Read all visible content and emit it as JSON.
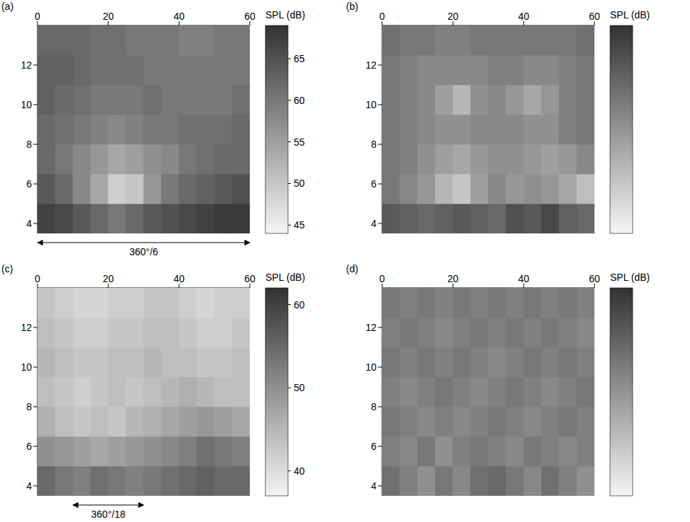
{
  "chart_data": [
    {
      "panel": "(a)",
      "type": "heatmap",
      "xlim": [
        0,
        60
      ],
      "xticks": [
        0,
        20,
        40,
        60
      ],
      "ylim": [
        3.5,
        14
      ],
      "yticks": [
        4,
        6,
        8,
        10,
        12
      ],
      "x_edges": [
        0,
        5,
        10,
        15,
        20,
        25,
        30,
        35,
        40,
        45,
        50,
        55,
        60
      ],
      "y_edges": [
        3.5,
        5,
        6.5,
        8,
        9.5,
        11,
        12.5,
        14
      ],
      "cells": [
        [
          67,
          66,
          64,
          62,
          60,
          62,
          64,
          65,
          66,
          67,
          68,
          68
        ],
        [
          64,
          62,
          58,
          54,
          49,
          50,
          56,
          60,
          62,
          63,
          64,
          65
        ],
        [
          62,
          60,
          58,
          56,
          54,
          55,
          57,
          58,
          60,
          61,
          62,
          62
        ],
        [
          62,
          61,
          60,
          59,
          58,
          59,
          60,
          60,
          61,
          61,
          61,
          62
        ],
        [
          63,
          62,
          61,
          60,
          60,
          60,
          61,
          60,
          60,
          60,
          60,
          61
        ],
        [
          63,
          63,
          62,
          61,
          61,
          61,
          60,
          60,
          60,
          60,
          60,
          60
        ],
        [
          62,
          62,
          62,
          61,
          61,
          60,
          60,
          60,
          59,
          59,
          60,
          60
        ]
      ],
      "colorbar": {
        "label": "SPL (dB)",
        "range": [
          44,
          69
        ],
        "ticks": [
          45,
          50,
          55,
          60,
          65
        ]
      },
      "annotation": {
        "text": "360°/6",
        "x": [
          0,
          60
        ]
      }
    },
    {
      "panel": "(b)",
      "type": "heatmap",
      "xlim": [
        0,
        60
      ],
      "xticks": [
        0,
        20,
        40,
        60
      ],
      "ylim": [
        3.5,
        14
      ],
      "yticks": [
        4,
        6,
        8,
        10,
        12
      ],
      "x_edges": [
        0,
        5,
        10,
        15,
        20,
        25,
        30,
        35,
        40,
        45,
        50,
        55,
        60
      ],
      "y_edges": [
        3.5,
        5,
        6.5,
        8,
        9.5,
        11,
        12.5,
        14
      ],
      "cells": [
        [
          64,
          63,
          62,
          63,
          64,
          63,
          62,
          65,
          64,
          66,
          63,
          62
        ],
        [
          60,
          58,
          56,
          52,
          50,
          55,
          58,
          56,
          57,
          56,
          54,
          51
        ],
        [
          60,
          59,
          57,
          55,
          54,
          56,
          57,
          57,
          56,
          55,
          56,
          58
        ],
        [
          60,
          59,
          58,
          57,
          57,
          58,
          58,
          58,
          57,
          57,
          59,
          60
        ],
        [
          60,
          59,
          58,
          55,
          52,
          57,
          58,
          56,
          54,
          56,
          59,
          60
        ],
        [
          60,
          59,
          58,
          58,
          58,
          58,
          59,
          59,
          58,
          58,
          59,
          60
        ],
        [
          61,
          60,
          60,
          59,
          59,
          60,
          60,
          60,
          60,
          60,
          60,
          61
        ]
      ],
      "colorbar": {
        "label": "SPL (dB)",
        "range": [
          44,
          69
        ]
      }
    },
    {
      "panel": "(c)",
      "type": "heatmap",
      "xlim": [
        0,
        60
      ],
      "xticks": [
        0,
        20,
        40,
        60
      ],
      "ylim": [
        3.5,
        14
      ],
      "yticks": [
        4,
        6,
        8,
        10,
        12
      ],
      "x_edges": [
        0,
        5,
        10,
        15,
        20,
        25,
        30,
        35,
        40,
        45,
        50,
        55,
        60
      ],
      "y_edges": [
        3.5,
        5,
        6.5,
        8,
        9.5,
        11,
        12.5,
        14
      ],
      "cells": [
        [
          55,
          53,
          52,
          54,
          53,
          52,
          53,
          54,
          55,
          56,
          55,
          55
        ],
        [
          50,
          49,
          48,
          47,
          48,
          49,
          50,
          51,
          52,
          54,
          53,
          52
        ],
        [
          46,
          44,
          43,
          44,
          43,
          45,
          46,
          47,
          48,
          49,
          48,
          47
        ],
        [
          44,
          43,
          42,
          43,
          44,
          43,
          44,
          45,
          46,
          45,
          44,
          44
        ],
        [
          45,
          44,
          43,
          43,
          44,
          44,
          45,
          44,
          44,
          43,
          43,
          44
        ],
        [
          44,
          43,
          42,
          42,
          43,
          43,
          44,
          44,
          43,
          42,
          42,
          43
        ],
        [
          43,
          42,
          41,
          41,
          42,
          42,
          43,
          43,
          42,
          41,
          42,
          42
        ]
      ],
      "colorbar": {
        "label": "SPL (dB)",
        "range": [
          37,
          62
        ],
        "ticks": [
          40,
          50,
          60
        ]
      },
      "annotation": {
        "text": "360°/18",
        "x": [
          10,
          30
        ]
      }
    },
    {
      "panel": "(d)",
      "type": "heatmap",
      "xlim": [
        0,
        60
      ],
      "xticks": [
        0,
        20,
        40,
        60
      ],
      "ylim": [
        3.5,
        14
      ],
      "yticks": [
        4,
        6,
        8,
        10,
        12
      ],
      "x_edges": [
        0,
        5,
        10,
        15,
        20,
        25,
        30,
        35,
        40,
        45,
        50,
        55,
        60
      ],
      "y_edges": [
        3.5,
        5,
        6.5,
        8,
        9.5,
        11,
        12.5,
        14
      ],
      "cells": [
        [
          54,
          52,
          50,
          53,
          51,
          54,
          55,
          53,
          51,
          54,
          52,
          50
        ],
        [
          52,
          51,
          53,
          50,
          52,
          53,
          52,
          51,
          53,
          52,
          51,
          52
        ],
        [
          53,
          52,
          51,
          52,
          51,
          52,
          53,
          52,
          51,
          52,
          53,
          52
        ],
        [
          52,
          51,
          52,
          53,
          52,
          51,
          52,
          53,
          52,
          51,
          52,
          53
        ],
        [
          53,
          52,
          53,
          52,
          53,
          52,
          51,
          52,
          53,
          52,
          53,
          52
        ],
        [
          52,
          53,
          52,
          51,
          52,
          53,
          52,
          53,
          52,
          53,
          52,
          51
        ],
        [
          53,
          52,
          53,
          52,
          53,
          52,
          53,
          52,
          53,
          52,
          53,
          52
        ]
      ],
      "colorbar": {
        "label": "SPL (dB)",
        "range": [
          37,
          62
        ]
      }
    }
  ]
}
